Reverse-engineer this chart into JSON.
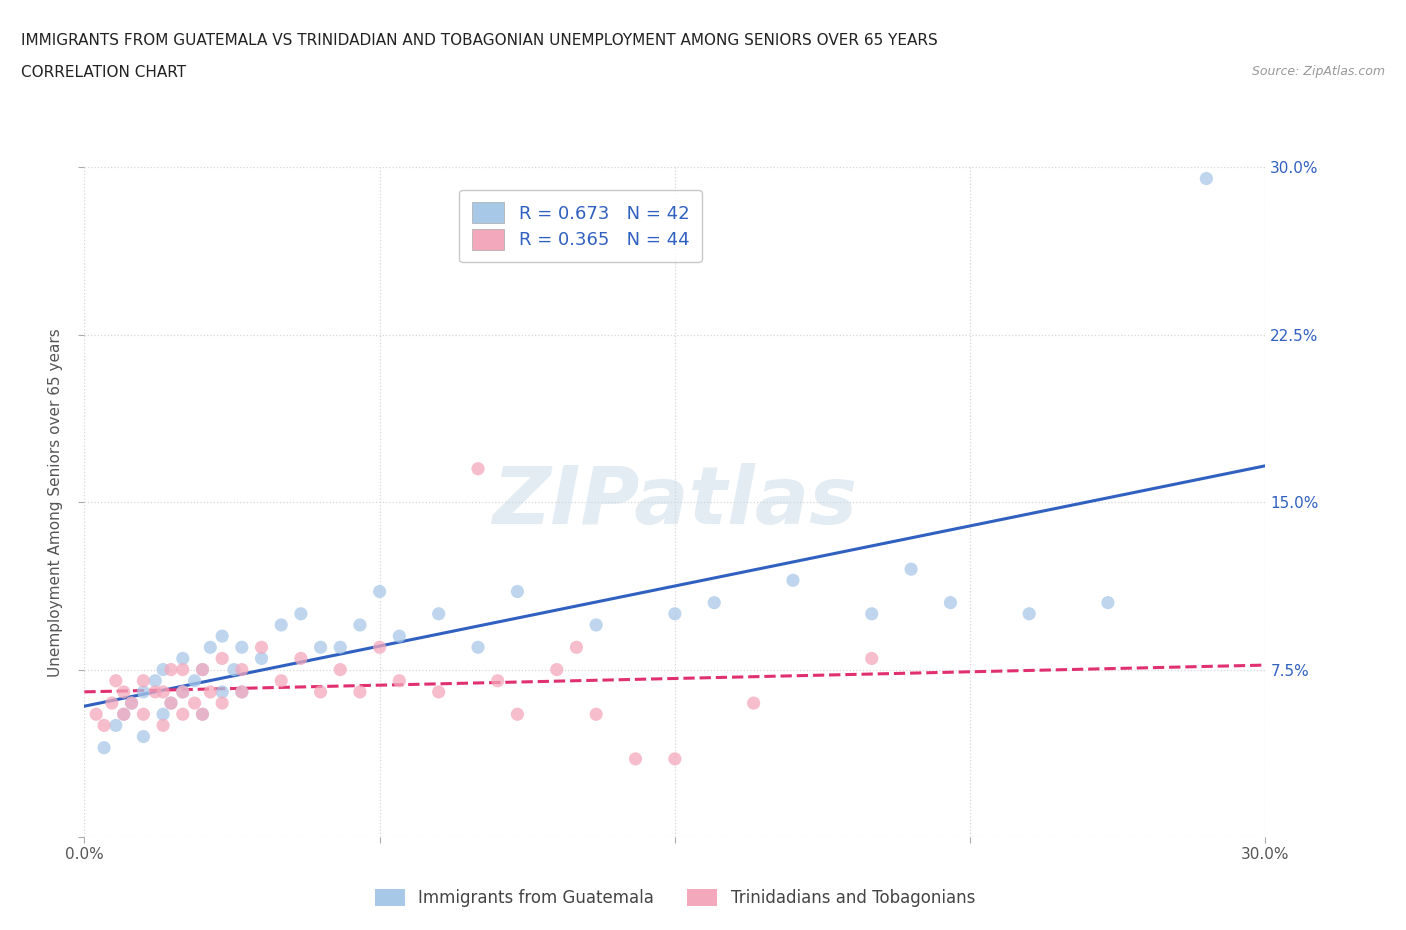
{
  "title_line1": "IMMIGRANTS FROM GUATEMALA VS TRINIDADIAN AND TOBAGONIAN UNEMPLOYMENT AMONG SENIORS OVER 65 YEARS",
  "title_line2": "CORRELATION CHART",
  "source_text": "Source: ZipAtlas.com",
  "watermark": "ZIPatlas",
  "ylabel": "Unemployment Among Seniors over 65 years",
  "xlim": [
    0.0,
    0.3
  ],
  "ylim": [
    0.0,
    0.3
  ],
  "xticks": [
    0.0,
    0.075,
    0.15,
    0.225,
    0.3
  ],
  "yticks": [
    0.0,
    0.075,
    0.15,
    0.225,
    0.3
  ],
  "xtick_labels_bottom": [
    "0.0%",
    "",
    "",
    "",
    "30.0%"
  ],
  "ytick_labels_right": [
    "",
    "7.5%",
    "15.0%",
    "22.5%",
    "30.0%"
  ],
  "blue_R": 0.673,
  "blue_N": 42,
  "pink_R": 0.365,
  "pink_N": 44,
  "blue_color": "#a8c8e8",
  "pink_color": "#f4a8bc",
  "blue_line_color": "#3060c0",
  "pink_line_color": "#e03070",
  "blue_scatter_x": [
    0.005,
    0.008,
    0.01,
    0.012,
    0.015,
    0.015,
    0.018,
    0.02,
    0.02,
    0.022,
    0.025,
    0.025,
    0.028,
    0.03,
    0.03,
    0.032,
    0.035,
    0.035,
    0.038,
    0.04,
    0.04,
    0.045,
    0.05,
    0.055,
    0.06,
    0.065,
    0.07,
    0.075,
    0.08,
    0.09,
    0.1,
    0.11,
    0.13,
    0.15,
    0.16,
    0.18,
    0.2,
    0.21,
    0.22,
    0.24,
    0.26,
    0.285
  ],
  "blue_scatter_y": [
    0.04,
    0.05,
    0.055,
    0.06,
    0.045,
    0.065,
    0.07,
    0.055,
    0.075,
    0.06,
    0.065,
    0.08,
    0.07,
    0.055,
    0.075,
    0.085,
    0.065,
    0.09,
    0.075,
    0.065,
    0.085,
    0.08,
    0.095,
    0.1,
    0.085,
    0.085,
    0.095,
    0.11,
    0.09,
    0.1,
    0.085,
    0.11,
    0.095,
    0.1,
    0.105,
    0.115,
    0.1,
    0.12,
    0.105,
    0.1,
    0.105,
    0.295
  ],
  "pink_scatter_x": [
    0.003,
    0.005,
    0.007,
    0.008,
    0.01,
    0.01,
    0.012,
    0.015,
    0.015,
    0.018,
    0.02,
    0.02,
    0.022,
    0.022,
    0.025,
    0.025,
    0.025,
    0.028,
    0.03,
    0.03,
    0.032,
    0.035,
    0.035,
    0.04,
    0.04,
    0.045,
    0.05,
    0.055,
    0.06,
    0.065,
    0.07,
    0.075,
    0.08,
    0.09,
    0.1,
    0.105,
    0.11,
    0.12,
    0.125,
    0.13,
    0.14,
    0.15,
    0.17,
    0.2
  ],
  "pink_scatter_y": [
    0.055,
    0.05,
    0.06,
    0.07,
    0.055,
    0.065,
    0.06,
    0.055,
    0.07,
    0.065,
    0.05,
    0.065,
    0.06,
    0.075,
    0.055,
    0.065,
    0.075,
    0.06,
    0.055,
    0.075,
    0.065,
    0.06,
    0.08,
    0.065,
    0.075,
    0.085,
    0.07,
    0.08,
    0.065,
    0.075,
    0.065,
    0.085,
    0.07,
    0.065,
    0.165,
    0.07,
    0.055,
    0.075,
    0.085,
    0.055,
    0.035,
    0.035,
    0.06,
    0.08
  ],
  "legend_blue_label": "Immigrants from Guatemala",
  "legend_pink_label": "Trinidadians and Tobagonians",
  "background_color": "#ffffff",
  "grid_color": "#cccccc",
  "title_color": "#222222",
  "axis_label_color": "#555555"
}
